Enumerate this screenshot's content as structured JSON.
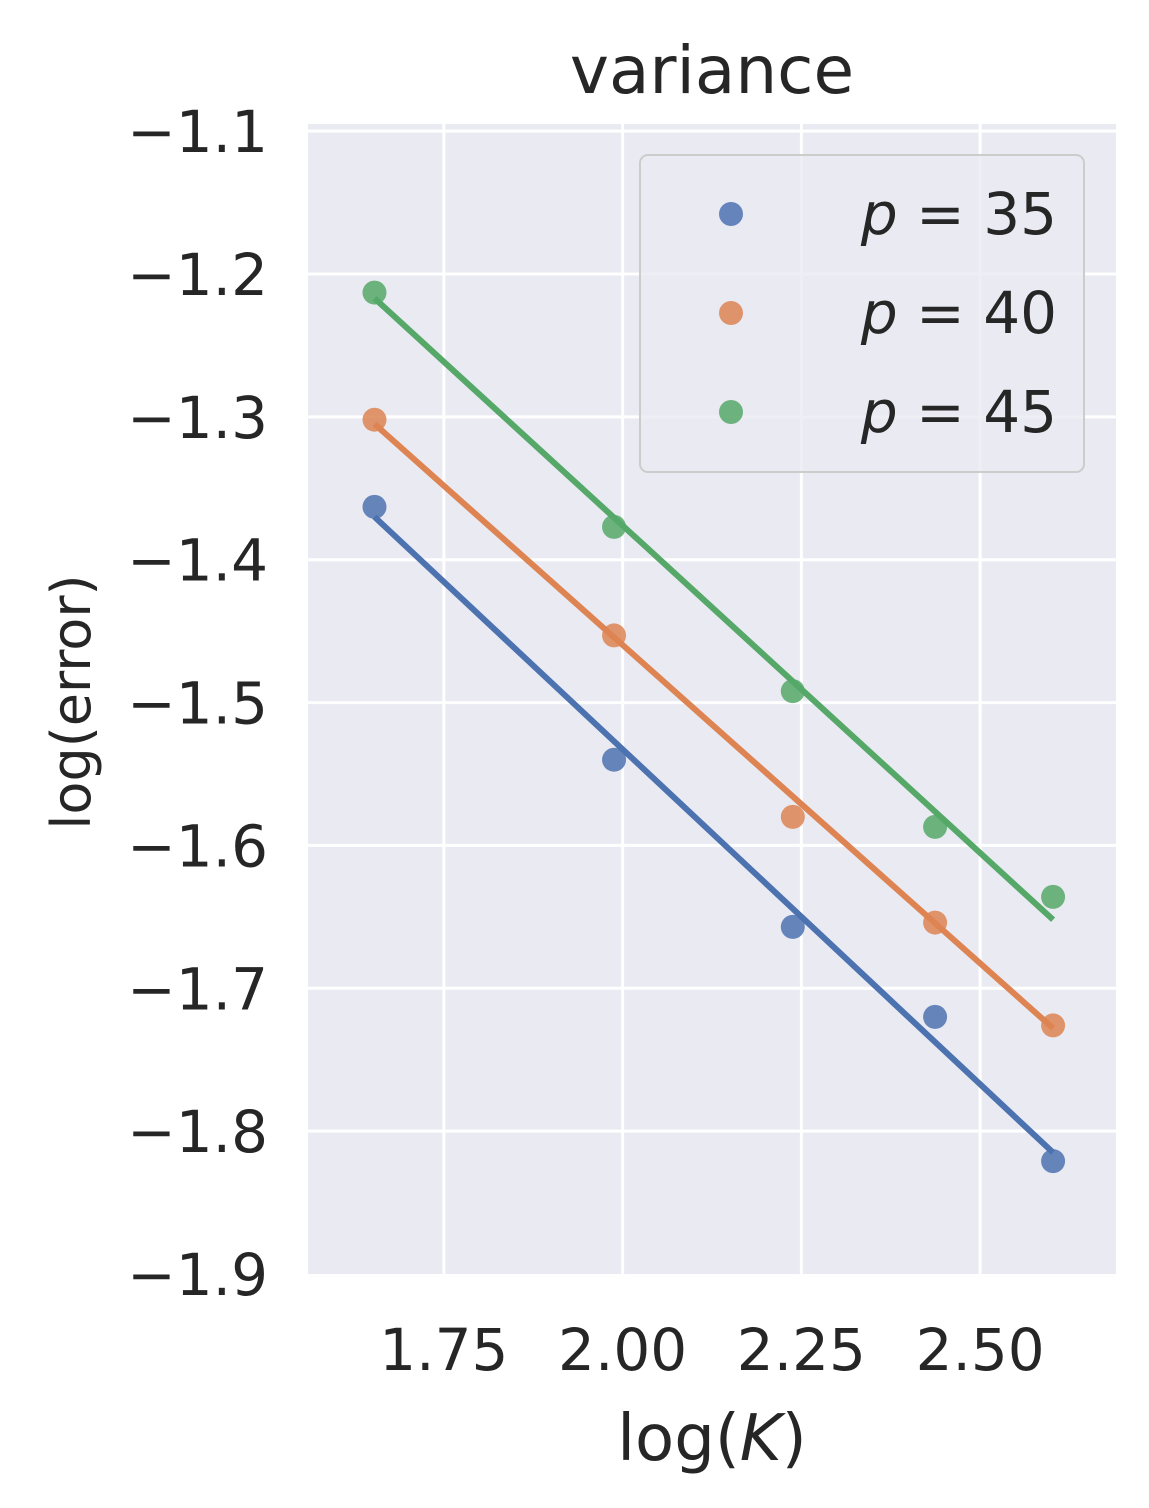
{
  "chart_data": {
    "type": "scatter",
    "title": "variance",
    "xlabel": "log(K)",
    "ylabel": "log(error)",
    "xlim": [
      1.56,
      2.69
    ],
    "ylim": [
      -1.9,
      -1.095
    ],
    "xticks": [
      1.75,
      2.0,
      2.25,
      2.5
    ],
    "xtick_labels": [
      "1.75",
      "2.00",
      "2.25",
      "2.50"
    ],
    "yticks": [
      -1.1,
      -1.2,
      -1.3,
      -1.4,
      -1.5,
      -1.6,
      -1.7,
      -1.8,
      -1.9
    ],
    "ytick_labels": [
      "−1.1",
      "−1.2",
      "−1.3",
      "−1.4",
      "−1.5",
      "−1.6",
      "−1.7",
      "−1.8",
      "−1.9"
    ],
    "grid": true,
    "legend_position": "top-right",
    "x": [
      1.653,
      1.988,
      2.238,
      2.437,
      2.602
    ],
    "series": [
      {
        "name": "p = 35",
        "legend_prefix": "p",
        "legend_suffix": " = 35",
        "color": "#4c72b0",
        "values": [
          -1.363,
          -1.54,
          -1.657,
          -1.72,
          -1.821
        ],
        "fit": [
          [
            1.653,
            -1.37
          ],
          [
            2.602,
            -1.815
          ]
        ]
      },
      {
        "name": "p = 40",
        "legend_prefix": "p",
        "legend_suffix": " = 40",
        "color": "#dd8452",
        "values": [
          -1.302,
          -1.453,
          -1.58,
          -1.654,
          -1.726
        ],
        "fit": [
          [
            1.653,
            -1.305
          ],
          [
            2.602,
            -1.728
          ]
        ]
      },
      {
        "name": "p = 45",
        "legend_prefix": "p",
        "legend_suffix": " = 45",
        "color": "#55a868",
        "values": [
          -1.213,
          -1.377,
          -1.492,
          -1.587,
          -1.636
        ],
        "fit": [
          [
            1.653,
            -1.217
          ],
          [
            2.602,
            -1.652
          ]
        ]
      }
    ]
  }
}
